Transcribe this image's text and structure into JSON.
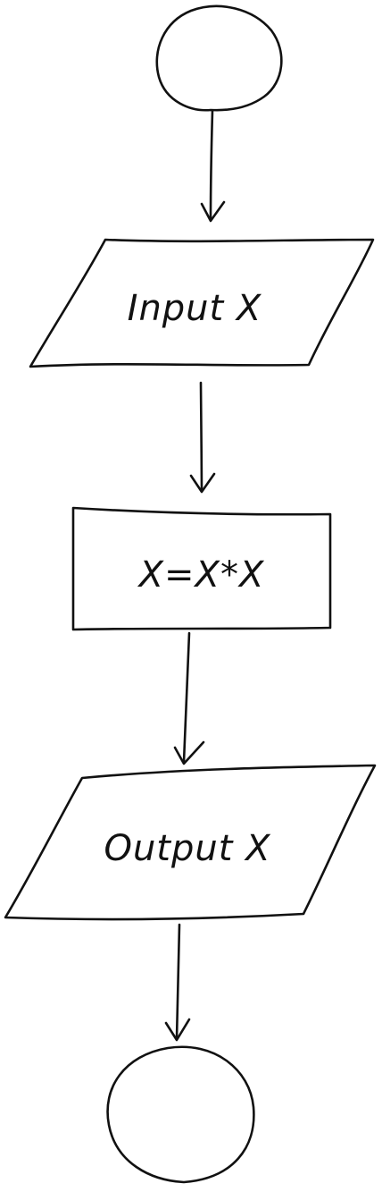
{
  "nodes": [
    {
      "id": "start",
      "type": "terminal",
      "text": ""
    },
    {
      "id": "input",
      "type": "io",
      "text": "Input X"
    },
    {
      "id": "process",
      "type": "process",
      "text": "X=X*X"
    },
    {
      "id": "output",
      "type": "io",
      "text": "Output X"
    },
    {
      "id": "end",
      "type": "terminal",
      "text": ""
    }
  ],
  "edges": [
    {
      "from": "start",
      "to": "input"
    },
    {
      "from": "input",
      "to": "process"
    },
    {
      "from": "process",
      "to": "output"
    },
    {
      "from": "output",
      "to": "end"
    }
  ]
}
